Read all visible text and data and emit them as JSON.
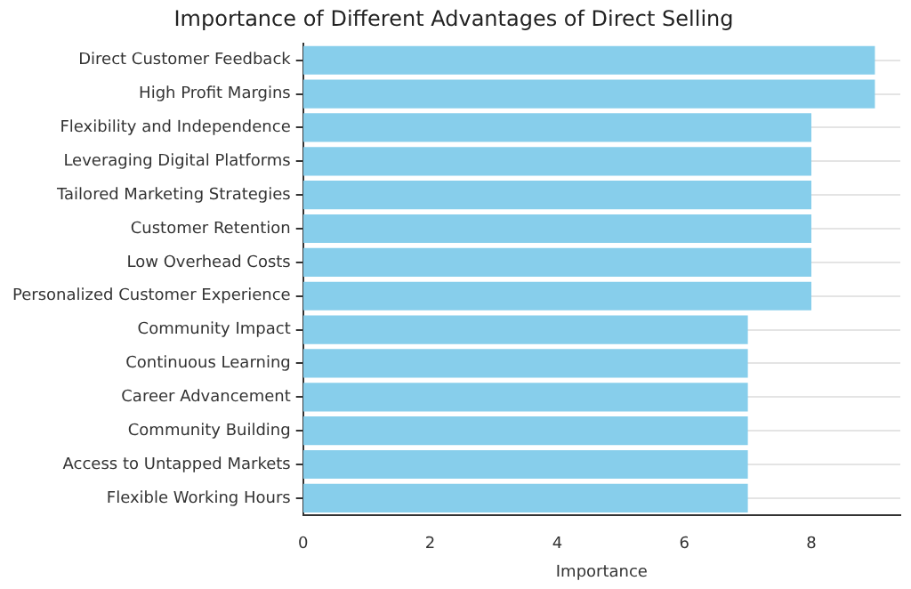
{
  "chart_data": {
    "type": "bar",
    "orientation": "horizontal",
    "title": "Importance of Different Advantages of Direct Selling",
    "xlabel": "Importance",
    "categories": [
      "Direct Customer Feedback",
      "High Profit Margins",
      "Flexibility and Independence",
      "Leveraging Digital Platforms",
      "Tailored Marketing Strategies",
      "Customer Retention",
      "Low Overhead Costs",
      "Personalized Customer Experience",
      "Community Impact",
      "Continuous Learning",
      "Career Advancement",
      "Community Building",
      "Access to Untapped Markets",
      "Flexible Working Hours"
    ],
    "values": [
      9,
      9,
      8,
      8,
      8,
      8,
      8,
      8,
      7,
      7,
      7,
      7,
      7,
      7
    ],
    "color": "#87ceeb",
    "xlim": [
      0,
      9.4
    ],
    "xticks": [
      0,
      2,
      4,
      6,
      8
    ],
    "grid": "y",
    "legend": false
  }
}
